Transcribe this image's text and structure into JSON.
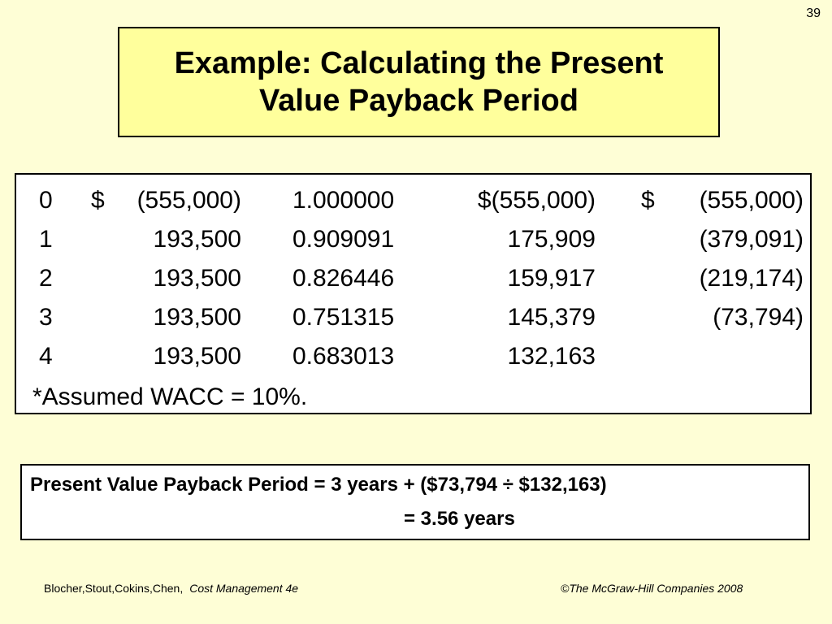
{
  "slide_number": "39",
  "title": {
    "line1": "Example: Calculating the Present",
    "line2": "Value Payback Period"
  },
  "table": {
    "rows": [
      {
        "year": "0",
        "dollar1": "$",
        "cash_flow": "(555,000)",
        "factor": "1.000000",
        "pv": "$(555,000)",
        "dollar2": "$",
        "cumulative": "(555,000)"
      },
      {
        "year": "1",
        "dollar1": "",
        "cash_flow": "193,500",
        "factor": "0.909091",
        "pv": "175,909",
        "dollar2": "",
        "cumulative": "(379,091)"
      },
      {
        "year": "2",
        "dollar1": "",
        "cash_flow": "193,500",
        "factor": "0.826446",
        "pv": "159,917",
        "dollar2": "",
        "cumulative": "(219,174)"
      },
      {
        "year": "3",
        "dollar1": "",
        "cash_flow": "193,500",
        "factor": "0.751315",
        "pv": "145,379",
        "dollar2": "",
        "cumulative": "(73,794)"
      },
      {
        "year": "4",
        "dollar1": "",
        "cash_flow": "193,500",
        "factor": "0.683013",
        "pv": "132,163",
        "dollar2": "",
        "cumulative": ""
      }
    ],
    "footnote": "*Assumed WACC = 10%."
  },
  "result": {
    "line1": "Present Value Payback Period = 3 years + ($73,794 ÷ $132,163)",
    "line2": "= 3.56 years"
  },
  "footer": {
    "authors": "Blocher,Stout,Cokins,Chen,",
    "book": "Cost Management 4e",
    "copyright": "©The McGraw-Hill Companies 2008"
  }
}
